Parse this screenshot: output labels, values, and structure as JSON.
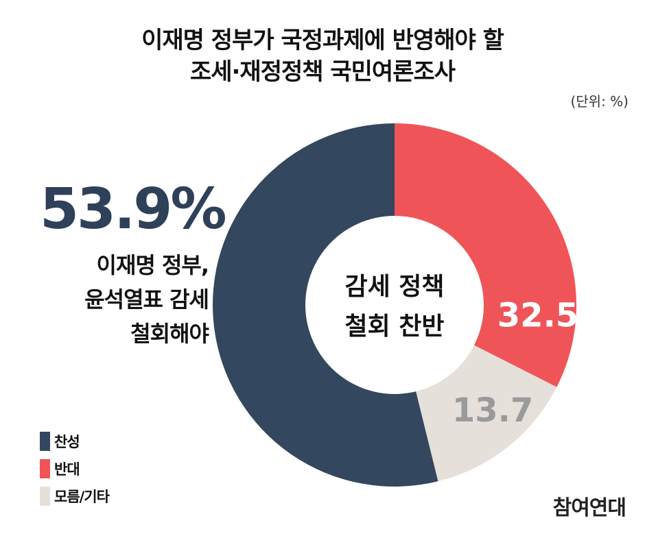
{
  "title_line1": "이재명 정부가 국정과제에 반영해야 할",
  "title_line2": "조세·재정정책 국민여론조사",
  "unit": "(단위: %)",
  "highlight": {
    "value": "53.9%",
    "caption_line1": "이재명 정부,",
    "caption_line2": "윤석열표 감세",
    "caption_line3": "철회해야"
  },
  "center_label_line1": "감세 정책",
  "center_label_line2": "철회 찬반",
  "brand": "참여연대",
  "chart_data": {
    "type": "pie",
    "donut": true,
    "categories": [
      "찬성",
      "반대",
      "모름/기타"
    ],
    "values": [
      53.9,
      32.5,
      13.7
    ],
    "value_labels": [
      "",
      "32.5",
      "13.7"
    ],
    "colors": [
      "#33475e",
      "#ef5558",
      "#e6e0db"
    ],
    "label_colors": [
      "#ffffff",
      "#ffffff",
      "#9a9a9a"
    ],
    "legend": [
      "찬성",
      "반대",
      "모름/기타"
    ],
    "legend_position": "bottom-left"
  }
}
